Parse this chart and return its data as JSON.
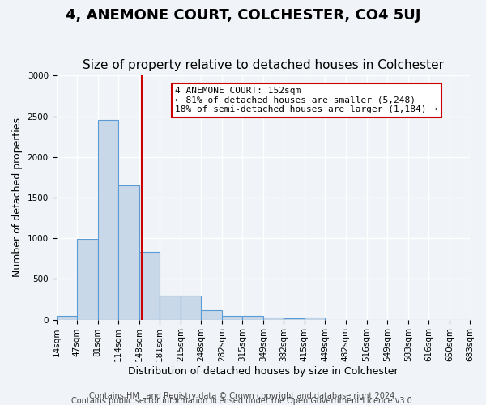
{
  "title": "4, ANEMONE COURT, COLCHESTER, CO4 5UJ",
  "subtitle": "Size of property relative to detached houses in Colchester",
  "xlabel": "Distribution of detached houses by size in Colchester",
  "ylabel": "Number of detached properties",
  "bin_labels": [
    "14sqm",
    "47sqm",
    "81sqm",
    "114sqm",
    "148sqm",
    "181sqm",
    "215sqm",
    "248sqm",
    "282sqm",
    "315sqm",
    "349sqm",
    "382sqm",
    "415sqm",
    "449sqm",
    "482sqm",
    "516sqm",
    "549sqm",
    "583sqm",
    "616sqm",
    "650sqm",
    "683sqm"
  ],
  "bin_edges": [
    14,
    47,
    81,
    114,
    148,
    181,
    215,
    248,
    282,
    315,
    349,
    382,
    415,
    449,
    482,
    516,
    549,
    583,
    616,
    650,
    683
  ],
  "bar_heights": [
    50,
    990,
    2460,
    1650,
    830,
    290,
    290,
    115,
    50,
    50,
    30,
    20,
    25,
    0,
    0,
    0,
    0,
    0,
    0,
    0
  ],
  "bar_color": "#c8d8e8",
  "bar_edge_color": "#5b9bd5",
  "property_line_x": 152,
  "property_line_color": "#cc0000",
  "annotation_text": "4 ANEMONE COURT: 152sqm\n← 81% of detached houses are smaller (5,248)\n18% of semi-detached houses are larger (1,184) →",
  "annotation_box_color": "#ffffff",
  "annotation_box_edge_color": "#cc0000",
  "ylim": [
    0,
    3000
  ],
  "yticks": [
    0,
    500,
    1000,
    1500,
    2000,
    2500,
    3000
  ],
  "footer1": "Contains HM Land Registry data © Crown copyright and database right 2024.",
  "footer2": "Contains public sector information licensed under the Open Government Licence v3.0.",
  "bg_color": "#f0f4f8",
  "plot_bg_color": "#f0f4f8",
  "grid_color": "#ffffff",
  "title_fontsize": 13,
  "subtitle_fontsize": 11,
  "label_fontsize": 9,
  "tick_fontsize": 7.5,
  "footer_fontsize": 7
}
